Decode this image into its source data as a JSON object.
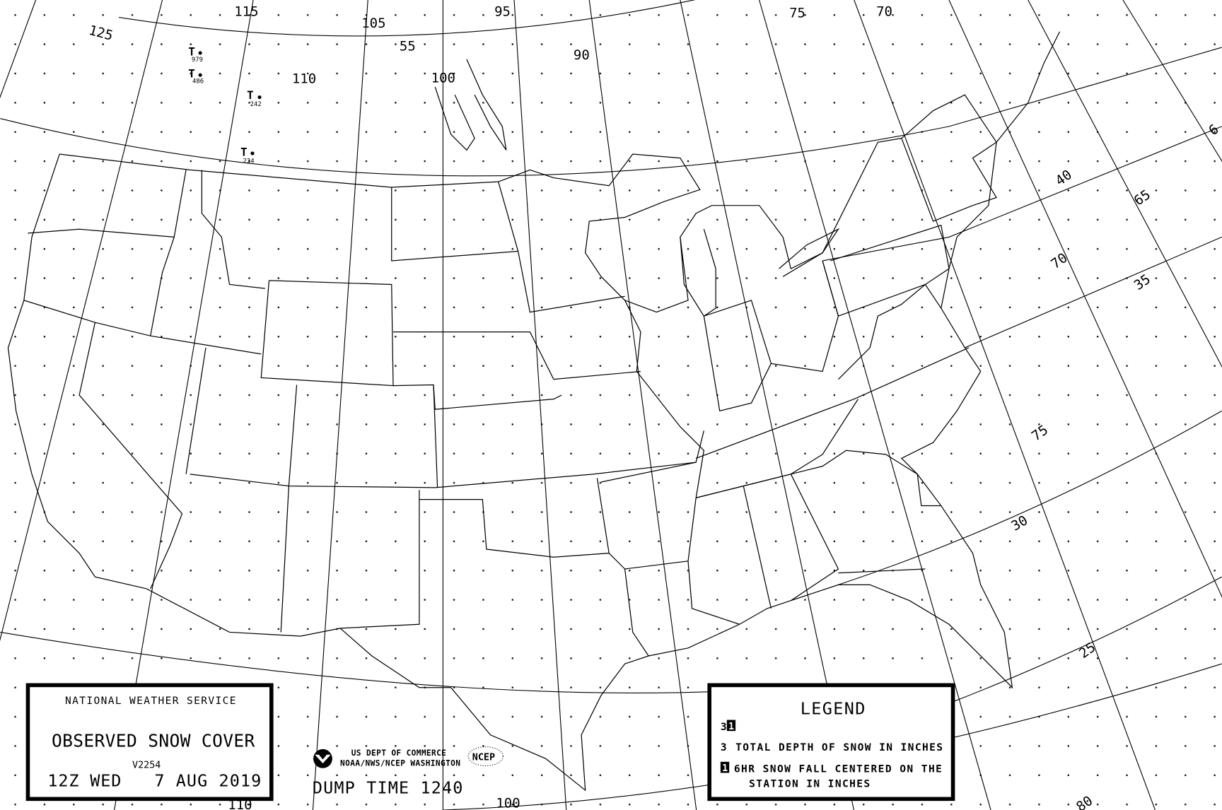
{
  "map": {
    "graticule_labels": {
      "lon_125": "125",
      "lon_115": "115",
      "lon_105": "105",
      "lat_55": "55",
      "lon_95": "95",
      "lon_110": "110",
      "lon_100": "100",
      "lon_90": "90",
      "lon_75": "75",
      "lon_70": "70",
      "r_40": "40",
      "r_65": "65",
      "r_70": "70",
      "r_35": "35",
      "r_75": "75",
      "r_30": "30",
      "r_25": "25",
      "r_80": "80",
      "b_110": "110",
      "b_100": "100",
      "r_e": "6"
    },
    "stations": [
      {
        "symbol": "T",
        "value": "979"
      },
      {
        "symbol": "T",
        "value": "486"
      },
      {
        "symbol": "T",
        "value": "242"
      },
      {
        "symbol": "T",
        "value": "234"
      }
    ]
  },
  "title_box": {
    "agency": "NATIONAL WEATHER SERVICE",
    "title": "OBSERVED SNOW COVER",
    "version": "V2254",
    "time": "12Z WED",
    "date": "7 AUG 2019"
  },
  "credits": {
    "line1": "US DEPT OF COMMERCE",
    "line2": "NOAA/NWS/NCEP WASHINGTON",
    "ncep_logo": "NCEP",
    "dump_time": "DUMP TIME 1240"
  },
  "legend": {
    "title": "LEGEND",
    "sample_depth": "3",
    "sample_fall": "1",
    "depth_key": "3",
    "depth_desc": "TOTAL DEPTH OF SNOW IN INCHES",
    "fall_key": "1",
    "fall_desc_1": "6HR SNOW FALL CENTERED ON THE",
    "fall_desc_2": "STATION IN INCHES"
  }
}
